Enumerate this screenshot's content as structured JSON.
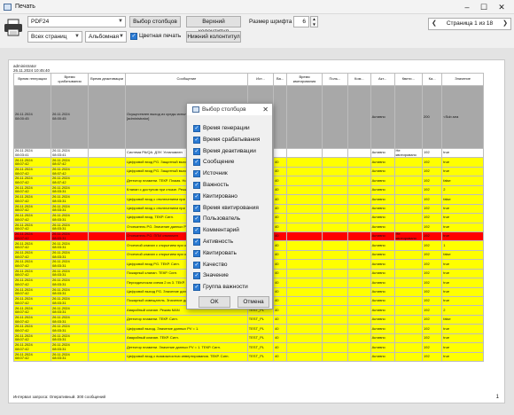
{
  "window": {
    "title": "Печать",
    "minimize": "–",
    "maximize": "☐",
    "close": "✕"
  },
  "toolbar": {
    "printer": "PDF24",
    "pages": "Всех страниц",
    "orientation": "Альбомная",
    "color_print_label": "Цветная печать",
    "column_select_label": "Выбор столбцов",
    "header_label": "Верхний колонтитул",
    "footer_label": "Нижний колонтитул",
    "font_size_label": "Размер шрифта",
    "font_size_value": "6",
    "page_indicator": "Страница 1 из 18",
    "prev": "❮",
    "next": "❯"
  },
  "report": {
    "user": "administrator",
    "datetime": "26.11.2024 10:45:40",
    "headers": [
      "Время генерации",
      "Время срабатывания",
      "Время деактивации",
      "Сообщение",
      "Ист...",
      "Ва...",
      "Время квитирования",
      "Поль...",
      "Ком...",
      "Акт...",
      "Квити...",
      "Ка...",
      "Значение"
    ],
    "footer": "Интервал запроса: Оперативный. 300 сообщений",
    "page_number": "1",
    "rows": [
      {
        "c": "big",
        "g": "26.11.2024\n08:00:45",
        "s": "26.11.2024\n08:00:45",
        "d": "",
        "m": "Осуществлен выход из среды исполнения (R9 ARM_WTRANSSB).[administrator]",
        "src": "",
        "v": "",
        "a": "Активно",
        "k": "",
        "q": "200",
        "val": "<Sub.sea"
      },
      {
        "c": "white",
        "g": "26.11.2024\n08:03:41",
        "s": "26.11.2024\n08:03:41",
        "d": "",
        "m": "Система PA/QA. ДЭУ. Установлен",
        "src": "",
        "v": "",
        "a": "Активно",
        "k": "Не квитировано",
        "q": "192",
        "val": "true"
      },
      {
        "c": "yellow",
        "g": "26.11.2024\n08:07:42",
        "s": "26.11.2024\n08:07:42",
        "d": "",
        "m": "Цифровой вход PG. Защитный выход. Норма",
        "src": "TEST_PL",
        "v": "40",
        "a": "Активно",
        "k": "",
        "q": "192",
        "val": "true"
      },
      {
        "c": "yellow",
        "g": "26.11.2024\n08:07:42",
        "s": "26.11.2024\n08:07:42",
        "d": "",
        "m": "Цифровой вход PG. Защитный выход. Норма",
        "src": "TEST_PL",
        "v": "40",
        "a": "Активно",
        "k": "",
        "q": "192",
        "val": "true"
      },
      {
        "c": "yellow",
        "g": "26.11.2024\n08:07:42",
        "s": "26.11.2024\n08:07:42",
        "d": "",
        "m": "Детектор пламени. ТЕКР. Пламя. Норма",
        "src": "TEST_PL",
        "v": "40",
        "a": "Активно",
        "k": "",
        "q": "192",
        "val": "false"
      },
      {
        "c": "yellow",
        "g": "26.11.2024\n08:07:42",
        "s": "26.11.2024\n08:03:31",
        "d": "",
        "m": "Клапан с доступом при отказе. Режим MAN",
        "src": "TEST_PL",
        "v": "40",
        "a": "Активно",
        "k": "",
        "q": "192",
        "val": "2"
      },
      {
        "c": "yellow",
        "g": "26.11.2024\n08:07:42",
        "s": "26.11.2024\n08:03:31",
        "d": "",
        "m": "Цифровой вход с отключением при отказе. ТЕКР.",
        "src": "TEST_PL",
        "v": "40",
        "a": "Активно",
        "k": "",
        "q": "192",
        "val": "false"
      },
      {
        "c": "yellow",
        "g": "26.11.2024\n08:07:42",
        "s": "26.11.2024\n08:03:31",
        "d": "",
        "m": "Цифровой вход с отключением при отказе. ТЕКР. данных PV = 1.",
        "src": "TEST_PL",
        "v": "40",
        "a": "Активно",
        "k": "",
        "q": "192",
        "val": "true"
      },
      {
        "c": "yellow",
        "g": "26.11.2024\n08:07:42",
        "s": "26.11.2024\n08:03:31",
        "d": "",
        "m": "Цифровой вход. ТЕКР. Сигн.",
        "src": "TEST_PL",
        "v": "40",
        "a": "Активно",
        "k": "",
        "q": "192",
        "val": "true"
      },
      {
        "c": "yellow",
        "g": "26.11.2024\n08:07:42",
        "s": "26.11.2024\n08:03:31",
        "d": "",
        "m": "Отсекатель PG. Значение данных PV = 1.",
        "src": "TEST_PL",
        "v": "40",
        "a": "Активно",
        "k": "",
        "q": "192",
        "val": "true"
      },
      {
        "c": "red",
        "g": "26.11.2024\n08:07:42",
        "s": "26.11.2024\n08:03:31",
        "d": "",
        "m": "Отсекатель PG. ППИ отключен",
        "src": "TEST_PL",
        "v": "40",
        "a": "Активно",
        "k": "Не квитировано",
        "q": "192",
        "val": "true"
      },
      {
        "c": "yellow",
        "g": "26.11.2024\n08:07:42",
        "s": "26.11.2024\n08:03:31",
        "d": "",
        "m": "Отсечной клапан с открытием при отказе. PG.",
        "src": "TEST_PL",
        "v": "40",
        "a": "Активно",
        "k": "",
        "q": "192",
        "val": "1"
      },
      {
        "c": "yellow",
        "g": "26.11.2024\n08:07:42",
        "s": "26.11.2024\n08:03:31",
        "d": "",
        "m": "Отсечной клапан с открытием при отказе. PG. данных PV = 1.",
        "src": "TEST_PL",
        "v": "40",
        "a": "Активно",
        "k": "",
        "q": "192",
        "val": "false"
      },
      {
        "c": "yellow",
        "g": "26.11.2024\n08:07:42",
        "s": "26.11.2024\n08:03:31",
        "d": "",
        "m": "Цифровой вход PG. ТЕКР. Сигн.",
        "src": "TEST_PL",
        "v": "40",
        "a": "Активно",
        "k": "",
        "q": "192",
        "val": "true"
      },
      {
        "c": "yellow",
        "g": "26.11.2024\n08:07:42",
        "s": "26.11.2024\n08:03:31",
        "d": "",
        "m": "Пожарный клапан. ТЕКР. Сигн.",
        "src": "TEST_PL",
        "v": "40",
        "a": "Активно",
        "k": "",
        "q": "192",
        "val": "true"
      },
      {
        "c": "yellow",
        "g": "26.11.2024\n08:07:42",
        "s": "26.11.2024\n08:03:31",
        "d": "",
        "m": "Периодическая схема 2 из 3. ТЕКР. Сигн.",
        "src": "TEST_PL",
        "v": "40",
        "a": "Активно",
        "k": "",
        "q": "192",
        "val": "true"
      },
      {
        "c": "yellow",
        "g": "26.11.2024\n08:07:42",
        "s": "26.11.2024\n08:03:31",
        "d": "",
        "m": "Цифровой выход PG. Значение данных PV = 1.",
        "src": "TEST_PL",
        "v": "40",
        "a": "Активно",
        "k": "",
        "q": "192",
        "val": "true"
      },
      {
        "c": "yellow",
        "g": "26.11.2024\n08:07:42",
        "s": "26.11.2024\n08:03:31",
        "d": "",
        "m": "Пожарный извещатель. Значение данных PV = 1.",
        "src": "TEST_PL",
        "v": "40",
        "a": "Активно",
        "k": "",
        "q": "192",
        "val": "true"
      },
      {
        "c": "yellow",
        "g": "26.11.2024\n08:07:42",
        "s": "26.11.2024\n08:03:31",
        "d": "",
        "m": "Аварийный клапан. Режим MAN",
        "src": "TEST_PL",
        "v": "40",
        "a": "Активно",
        "k": "",
        "q": "192",
        "val": "2"
      },
      {
        "c": "yellow",
        "g": "26.11.2024\n08:07:42",
        "s": "26.11.2024\n08:03:31",
        "d": "",
        "m": "Детектор пламени. ТЕКР. Сигн.",
        "src": "TEST_PL",
        "v": "40",
        "a": "Активно",
        "k": "",
        "q": "192",
        "val": "false"
      },
      {
        "c": "yellow",
        "g": "26.11.2024\n08:07:42",
        "s": "26.11.2024\n08:03:31",
        "d": "",
        "m": "Цифровой выход. Значение данных PV = 1.",
        "src": "TEST_PL",
        "v": "40",
        "a": "Активно",
        "k": "",
        "q": "192",
        "val": "true"
      },
      {
        "c": "yellow",
        "g": "26.11.2024\n08:07:42",
        "s": "26.11.2024\n08:03:31",
        "d": "",
        "m": "Аварийный клапан. ТЕКР. Сигн.",
        "src": "TEST_PL",
        "v": "40",
        "a": "Активно",
        "k": "",
        "q": "192",
        "val": "true"
      },
      {
        "c": "yellow",
        "g": "26.11.2024\n08:07:42",
        "s": "26.11.2024\n08:03:31",
        "d": "",
        "m": "Детектор пламени. Значение данных PV = 1. ТЕКР. Сигн.",
        "src": "TEST_PL",
        "v": "40",
        "a": "Активно",
        "k": "",
        "q": "192",
        "val": "true"
      },
      {
        "c": "yellow",
        "g": "26.11.2024\n08:07:42",
        "s": "26.11.2024\n08:03:31",
        "d": "",
        "m": "Цифровой вход с возможностью инвертирования. ТЕКР. Сигн.",
        "src": "TEST_PL",
        "v": "40",
        "a": "Активно",
        "k": "",
        "q": "192",
        "val": "true"
      }
    ]
  },
  "dialog": {
    "title": "Выбор столбцов",
    "close": "✕",
    "items": [
      "Время генерации",
      "Время срабатывания",
      "Время деактивации",
      "Сообщение",
      "Источник",
      "Важность",
      "Квитировано",
      "Время квитирования",
      "Пользователь",
      "Комментарий",
      "Активность",
      "Квитировать",
      "Качество",
      "Значение",
      "Группа важности"
    ],
    "ok": "OK",
    "cancel": "Отмена"
  },
  "colors": {
    "yellow": "#ffff00",
    "red": "#ff0000",
    "white": "#ffffff",
    "gray": "#a8a8a8",
    "accent": "#2b7bd4"
  }
}
